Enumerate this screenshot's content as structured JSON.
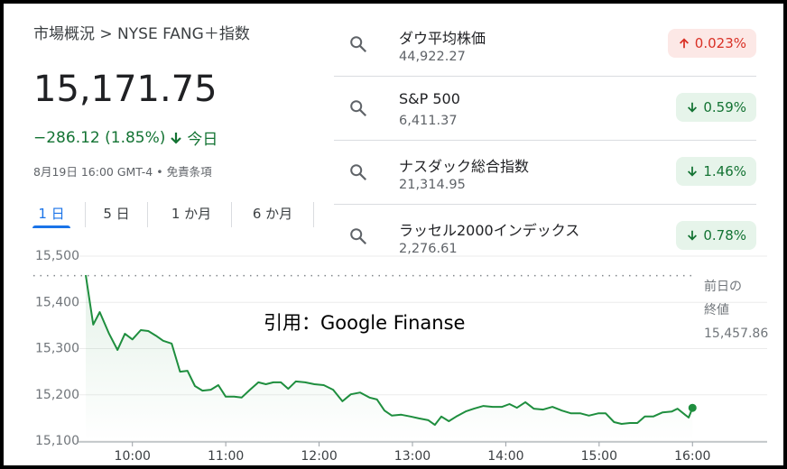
{
  "header": {
    "breadcrumb": "市場概況 > NYSE FANG＋指数",
    "price": "15,171.75",
    "change": "−286.12 (1.85%)",
    "change_period": "今日",
    "timestamp": "8月19日 16:00 GMT-4 • 免責条項",
    "direction": "down"
  },
  "tabs": {
    "items": [
      "1 日",
      "5 日",
      "1 か月",
      "6 か月"
    ],
    "selected": 0
  },
  "markets": [
    {
      "name": "ダウ平均株価",
      "value": "44,922.27",
      "change": "0.023%",
      "direction": "up"
    },
    {
      "name": "S&P 500",
      "value": "6,411.37",
      "change": "0.59%",
      "direction": "down"
    },
    {
      "name": "ナスダック総合指数",
      "value": "21,314.95",
      "change": "1.46%",
      "direction": "down"
    },
    {
      "name": "ラッセル2000インデックス",
      "value": "2,276.61",
      "change": "0.78%",
      "direction": "down"
    }
  ],
  "chart_data": {
    "type": "line",
    "annotation": "引用：Google Finanse",
    "color": "#1e8e3e",
    "x": [
      9.5,
      9.58,
      9.65,
      9.75,
      9.84,
      9.92,
      10.0,
      10.09,
      10.17,
      10.25,
      10.33,
      10.42,
      10.51,
      10.59,
      10.67,
      10.75,
      10.84,
      10.92,
      11.0,
      11.09,
      11.17,
      11.26,
      11.35,
      11.43,
      11.51,
      11.59,
      11.67,
      11.75,
      11.85,
      11.95,
      12.05,
      12.15,
      12.25,
      12.34,
      12.44,
      12.54,
      12.62,
      12.7,
      12.78,
      12.88,
      12.98,
      13.07,
      13.17,
      13.24,
      13.31,
      13.39,
      13.47,
      13.57,
      13.66,
      13.76,
      13.86,
      13.96,
      14.04,
      14.12,
      14.21,
      14.3,
      14.4,
      14.5,
      14.6,
      14.7,
      14.8,
      14.89,
      14.99,
      15.07,
      15.16,
      15.24,
      15.33,
      15.41,
      15.49,
      15.58,
      15.68,
      15.78,
      15.84,
      15.92,
      15.96,
      16.0
    ],
    "values": [
      15459,
      15352,
      15379,
      15332,
      15297,
      15332,
      15320,
      15340,
      15338,
      15328,
      15317,
      15311,
      15250,
      15252,
      15219,
      15209,
      15211,
      15221,
      15196,
      15196,
      15194,
      15211,
      15227,
      15223,
      15227,
      15227,
      15213,
      15229,
      15227,
      15223,
      15221,
      15211,
      15186,
      15201,
      15205,
      15194,
      15190,
      15166,
      15155,
      15157,
      15153,
      15149,
      15145,
      15135,
      15153,
      15143,
      15153,
      15164,
      15170,
      15176,
      15174,
      15174,
      15180,
      15172,
      15184,
      15170,
      15168,
      15174,
      15166,
      15160,
      15160,
      15155,
      15160,
      15160,
      15141,
      15137,
      15139,
      15139,
      15153,
      15153,
      15162,
      15164,
      15170,
      15157,
      15151,
      15171.75
    ],
    "xlim": [
      9.5,
      16.8
    ],
    "ylim": [
      15100,
      15500
    ],
    "xticks": [
      {
        "value": 10,
        "label": "10:00"
      },
      {
        "value": 11,
        "label": "11:00"
      },
      {
        "value": 12,
        "label": "12:00"
      },
      {
        "value": 13,
        "label": "13:00"
      },
      {
        "value": 14,
        "label": "14:00"
      },
      {
        "value": 15,
        "label": "15:00"
      },
      {
        "value": 16,
        "label": "16:00"
      }
    ],
    "yticks": [
      {
        "value": 15100,
        "label": "15,100"
      },
      {
        "value": 15200,
        "label": "15,200"
      },
      {
        "value": 15300,
        "label": "15,300"
      },
      {
        "value": 15400,
        "label": "15,400"
      },
      {
        "value": 15500,
        "label": "15,500"
      }
    ],
    "grid": true,
    "reference_line": {
      "lines": [
        "前日の",
        "終値"
      ],
      "value": 15457.86,
      "value_label": "15,457.86"
    }
  }
}
